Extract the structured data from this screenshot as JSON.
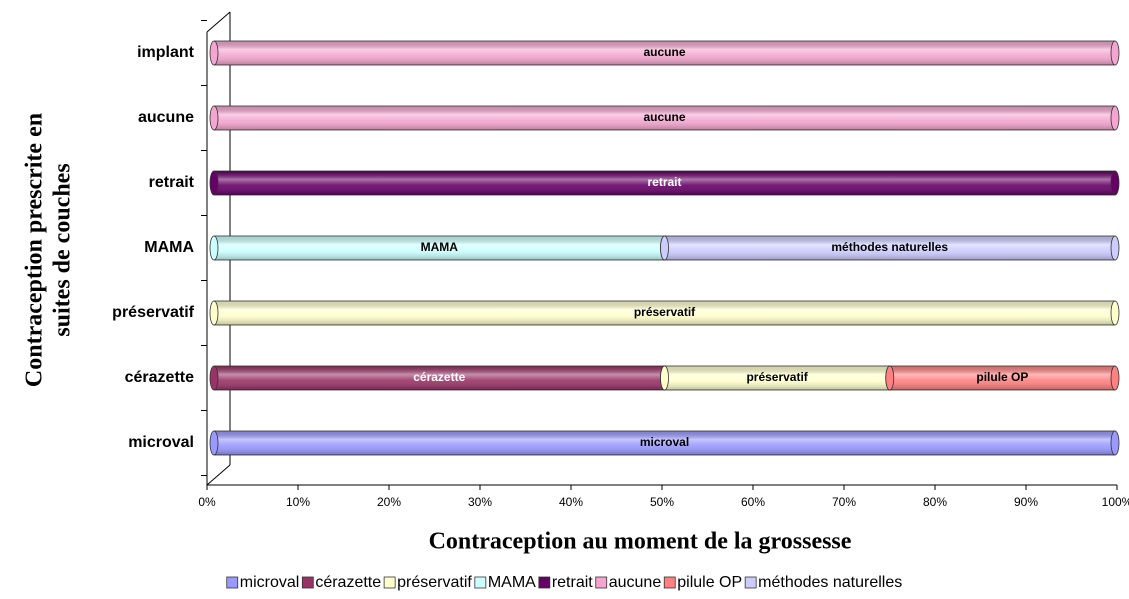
{
  "chart_data": {
    "type": "stacked_bar_horizontal",
    "xlabel": "Contraception au moment de la grossesse",
    "ylabel": [
      "Contraception prescrite en",
      "suites de couches"
    ],
    "categories": [
      "microval",
      "cérazette",
      "préservatif",
      "MAMA",
      "retrait",
      "aucune",
      "implant"
    ],
    "series": [
      {
        "name": "microval",
        "color": "#9999ff",
        "values": [
          100,
          null,
          null,
          null,
          null,
          null,
          null
        ]
      },
      {
        "name": "cérazette",
        "color": "#993366",
        "values": [
          null,
          50,
          null,
          null,
          null,
          null,
          null
        ]
      },
      {
        "name": "préservatif",
        "color": "#ffffcc",
        "values": [
          null,
          25,
          100,
          null,
          null,
          null,
          null
        ]
      },
      {
        "name": "MAMA",
        "color": "#ccffff",
        "values": [
          null,
          null,
          null,
          50,
          null,
          null,
          null
        ]
      },
      {
        "name": "retrait",
        "color": "#660066",
        "values": [
          null,
          null,
          null,
          null,
          100,
          null,
          null
        ]
      },
      {
        "name": "aucune",
        "color": "#f4a6d0",
        "values": [
          null,
          null,
          null,
          null,
          null,
          100,
          100
        ]
      },
      {
        "name": "pilule OP",
        "color": "#ff8080",
        "values": [
          null,
          25,
          null,
          null,
          null,
          null,
          null
        ]
      },
      {
        "name": "méthodes naturelles",
        "color": "#ccccff",
        "values": [
          null,
          null,
          null,
          50,
          null,
          null,
          null
        ]
      }
    ],
    "xlim": [
      0,
      100
    ],
    "xticks": [
      {
        "value": 0,
        "label": "0%"
      },
      {
        "value": 10,
        "label": "10%"
      },
      {
        "value": 20,
        "label": "20%"
      },
      {
        "value": 30,
        "label": "30%"
      },
      {
        "value": 40,
        "label": "40%"
      },
      {
        "value": 50,
        "label": "50%"
      },
      {
        "value": 60,
        "label": "60%"
      },
      {
        "value": 70,
        "label": "70%"
      },
      {
        "value": 80,
        "label": "80%"
      },
      {
        "value": 90,
        "label": "90%"
      },
      {
        "value": 100,
        "label": "100%"
      }
    ],
    "legend": "bottom"
  }
}
